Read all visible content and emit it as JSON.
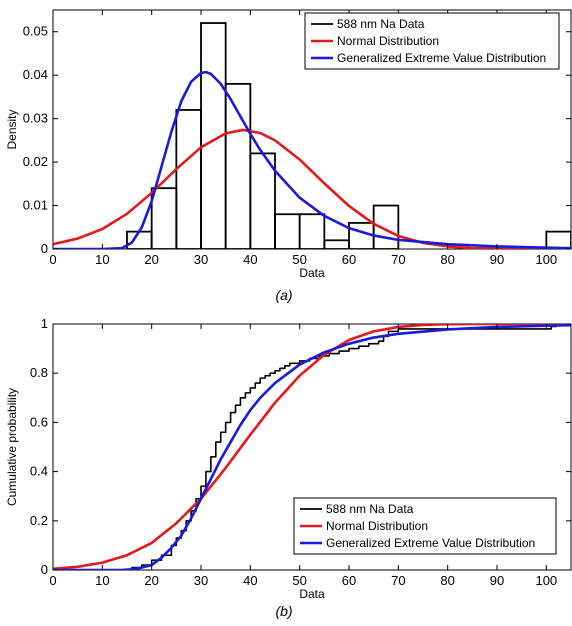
{
  "chart_data": [
    {
      "type": "histogram",
      "panel_label": "(a)",
      "xlabel": "Data",
      "ylabel": "Density",
      "xlim": [
        0,
        105
      ],
      "ylim": [
        0,
        0.055
      ],
      "xticks": [
        0,
        10,
        20,
        30,
        40,
        50,
        60,
        70,
        80,
        90,
        100
      ],
      "yticks": [
        0,
        0.01,
        0.02,
        0.03,
        0.04,
        0.05
      ],
      "ytick_labels": [
        "0",
        "0.01",
        "0.02",
        "0.03",
        "0.04",
        "0.05"
      ],
      "bins": [
        {
          "x0": 15,
          "x1": 20,
          "value": 0.004
        },
        {
          "x0": 20,
          "x1": 25,
          "value": 0.014
        },
        {
          "x0": 25,
          "x1": 30,
          "value": 0.032
        },
        {
          "x0": 30,
          "x1": 35,
          "value": 0.052
        },
        {
          "x0": 35,
          "x1": 40,
          "value": 0.038
        },
        {
          "x0": 40,
          "x1": 45,
          "value": 0.022
        },
        {
          "x0": 45,
          "x1": 50,
          "value": 0.008
        },
        {
          "x0": 50,
          "x1": 55,
          "value": 0.008
        },
        {
          "x0": 55,
          "x1": 60,
          "value": 0.002
        },
        {
          "x0": 60,
          "x1": 65,
          "value": 0.006
        },
        {
          "x0": 65,
          "x1": 70,
          "value": 0.01
        },
        {
          "x0": 100,
          "x1": 105,
          "value": 0.004
        }
      ],
      "series": [
        {
          "name": "588 nm Na Data",
          "color": "#000000",
          "kind": "histogram"
        },
        {
          "name": "Normal Distribution",
          "color": "#e31a1c",
          "kind": "pdf",
          "x": [
            0,
            5,
            10,
            15,
            20,
            25,
            30,
            35,
            38.5,
            42,
            45,
            50,
            55,
            60,
            65,
            70,
            75,
            80,
            85,
            90,
            95,
            100,
            105
          ],
          "y": [
            0.0011,
            0.0024,
            0.0046,
            0.0081,
            0.0129,
            0.0184,
            0.0234,
            0.0266,
            0.0274,
            0.0267,
            0.025,
            0.0206,
            0.0151,
            0.0099,
            0.0058,
            0.003,
            0.0014,
            0.0006,
            0.0002,
            0.0001,
            0.0,
            0.0,
            0.0
          ]
        },
        {
          "name": "Generalized Extreme Value Distribution",
          "color": "#1a1adf",
          "kind": "pdf",
          "x": [
            0,
            10,
            14,
            16,
            18,
            20,
            22,
            24,
            26,
            28,
            30,
            31,
            32,
            34,
            36,
            38,
            40,
            42,
            45,
            50,
            55,
            60,
            65,
            70,
            80,
            90,
            100,
            105
          ],
          "y": [
            0,
            0,
            0.0002,
            0.0015,
            0.005,
            0.011,
            0.019,
            0.027,
            0.034,
            0.0385,
            0.0405,
            0.0407,
            0.0403,
            0.038,
            0.0345,
            0.0305,
            0.0265,
            0.0228,
            0.018,
            0.0118,
            0.0076,
            0.0048,
            0.0031,
            0.0021,
            0.0011,
            0.0006,
            0.0003,
            0.0002
          ]
        }
      ]
    },
    {
      "type": "line",
      "panel_label": "(b)",
      "xlabel": "Data",
      "ylabel": "Cumulative probability",
      "xlim": [
        0,
        105
      ],
      "ylim": [
        0,
        1
      ],
      "xticks": [
        0,
        10,
        20,
        30,
        40,
        50,
        60,
        70,
        80,
        90,
        100
      ],
      "yticks": [
        0,
        0.2,
        0.4,
        0.6,
        0.8,
        1
      ],
      "ytick_labels": [
        "0",
        "0.2",
        "0.4",
        "0.6",
        "0.8",
        "1"
      ],
      "series": [
        {
          "name": "588 nm Na Data",
          "color": "#000000",
          "kind": "ecdf",
          "x": [
            0,
            16,
            18,
            20,
            22,
            24,
            25,
            26,
            27,
            28,
            29,
            30,
            31,
            32,
            33,
            34,
            35,
            36,
            37,
            38,
            39,
            40,
            41,
            42,
            43,
            44,
            45,
            46,
            47,
            48,
            50,
            52,
            54,
            56,
            58,
            60,
            62,
            64,
            66,
            67,
            68,
            70,
            100,
            101,
            102,
            105
          ],
          "y": [
            0,
            0.01,
            0.02,
            0.04,
            0.06,
            0.1,
            0.13,
            0.16,
            0.2,
            0.24,
            0.29,
            0.34,
            0.4,
            0.46,
            0.52,
            0.56,
            0.6,
            0.64,
            0.67,
            0.7,
            0.72,
            0.74,
            0.76,
            0.78,
            0.79,
            0.8,
            0.81,
            0.82,
            0.83,
            0.84,
            0.85,
            0.86,
            0.87,
            0.88,
            0.89,
            0.9,
            0.91,
            0.92,
            0.93,
            0.95,
            0.97,
            0.98,
            0.98,
            0.99,
            1.0,
            1.0
          ]
        },
        {
          "name": "Normal Distribution",
          "color": "#e31a1c",
          "kind": "cdf",
          "x": [
            0,
            5,
            10,
            15,
            20,
            25,
            30,
            35,
            40,
            45,
            50,
            55,
            60,
            65,
            70,
            75,
            80,
            85,
            90,
            95,
            100,
            105
          ],
          "y": [
            0.005,
            0.013,
            0.03,
            0.06,
            0.11,
            0.19,
            0.29,
            0.415,
            0.55,
            0.68,
            0.79,
            0.875,
            0.935,
            0.97,
            0.988,
            0.996,
            0.999,
            1.0,
            1.0,
            1.0,
            1.0,
            1.0
          ]
        },
        {
          "name": "Generalized Extreme Value Distribution",
          "color": "#1a1adf",
          "kind": "cdf",
          "x": [
            0,
            14,
            16,
            18,
            20,
            22,
            24,
            26,
            28,
            30,
            32,
            34,
            36,
            38,
            40,
            42,
            45,
            50,
            55,
            60,
            65,
            70,
            80,
            90,
            100,
            105
          ],
          "y": [
            0,
            0.0,
            0.003,
            0.01,
            0.02,
            0.05,
            0.09,
            0.14,
            0.21,
            0.29,
            0.37,
            0.45,
            0.52,
            0.59,
            0.65,
            0.7,
            0.76,
            0.835,
            0.885,
            0.92,
            0.945,
            0.96,
            0.978,
            0.988,
            0.993,
            0.995
          ]
        }
      ]
    }
  ]
}
